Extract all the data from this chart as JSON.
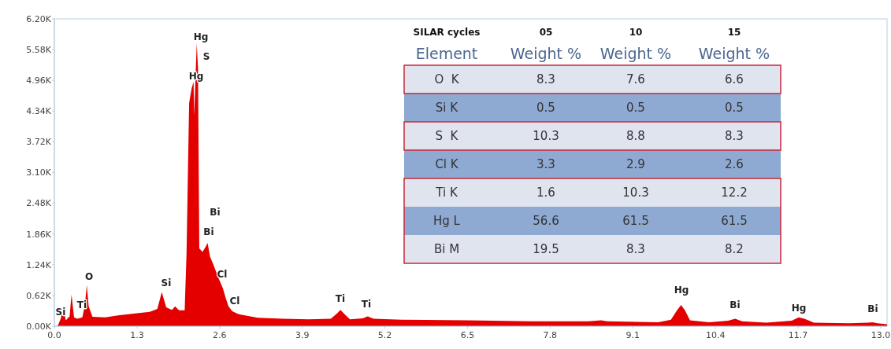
{
  "chart_data": [
    {
      "type": "area",
      "xlim": [
        0,
        13.1
      ],
      "ylim": [
        0,
        6200
      ],
      "xticks": [
        {
          "value": 0,
          "label": "0.0"
        },
        1.3,
        2.6,
        3.9,
        5.2,
        6.5,
        7.8,
        9.1,
        10.4,
        11.7,
        {
          "value": 13,
          "label": "13.0"
        }
      ],
      "yticks": [
        {
          "value": 0,
          "label": "0.00K"
        },
        {
          "value": 620,
          "label": "0.62K"
        },
        {
          "value": 1240,
          "label": "1.24K"
        },
        {
          "value": 1860,
          "label": "1.86K"
        },
        {
          "value": 2480,
          "label": "2.48K"
        },
        {
          "value": 3100,
          "label": "3.10K"
        },
        {
          "value": 3720,
          "label": "3.72K"
        },
        {
          "value": 4340,
          "label": "4.34K"
        },
        {
          "value": 4960,
          "label": "4.96K"
        },
        {
          "value": 5580,
          "label": "5.58K"
        },
        {
          "value": 6200,
          "label": "6.20K"
        }
      ],
      "grid": false,
      "x": [
        0.05,
        0.1,
        0.14,
        0.18,
        0.24,
        0.27,
        0.31,
        0.36,
        0.44,
        0.48,
        0.51,
        0.54,
        0.6,
        0.8,
        1.0,
        1.3,
        1.5,
        1.62,
        1.69,
        1.76,
        1.85,
        1.9,
        1.96,
        2.05,
        2.08,
        2.12,
        2.16,
        2.19,
        2.2,
        2.22,
        2.24,
        2.26,
        2.28,
        2.33,
        2.38,
        2.41,
        2.45,
        2.5,
        2.58,
        2.65,
        2.7,
        2.74,
        2.8,
        2.9,
        3.2,
        3.6,
        4.0,
        4.35,
        4.45,
        4.5,
        4.56,
        4.65,
        4.85,
        4.93,
        5.02,
        5.5,
        6.5,
        7.5,
        8.4,
        8.6,
        8.7,
        9.5,
        9.7,
        9.8,
        9.86,
        9.92,
        10.0,
        10.3,
        10.6,
        10.71,
        10.82,
        11.2,
        11.6,
        11.71,
        11.8,
        11.95,
        12.5,
        12.8,
        12.87,
        12.95,
        13.1
      ],
      "series": [
        {
          "color": "#e50000",
          "values": [
            0,
            150,
            370,
            120,
            200,
            640,
            180,
            150,
            180,
            420,
            830,
            400,
            190,
            180,
            220,
            260,
            290,
            350,
            690,
            380,
            330,
            400,
            320,
            320,
            1500,
            4500,
            4800,
            4930,
            4240,
            5000,
            5710,
            5200,
            1570,
            1500,
            1600,
            1680,
            1400,
            1250,
            980,
            770,
            550,
            400,
            300,
            240,
            170,
            150,
            140,
            150,
            260,
            330,
            250,
            140,
            160,
            200,
            150,
            130,
            120,
            100,
            100,
            120,
            100,
            80,
            130,
            330,
            430,
            320,
            120,
            80,
            110,
            150,
            100,
            70,
            110,
            180,
            150,
            70,
            60,
            70,
            80,
            60,
            40
          ]
        }
      ],
      "annotations": [
        "Hg",
        "S",
        "Hg",
        "Bi",
        "Bi",
        "Cl",
        "Cl",
        "O",
        "Si",
        "Si",
        "Ti",
        "Ti",
        "Ti",
        "Hg",
        "Bi",
        "Hg",
        "Bi"
      ]
    },
    {
      "type": "other",
      "legend_title": "SILAR cycles",
      "ylabel": "Element",
      "data_labels": true,
      "categories": [
        "O  K",
        "Si K",
        "S  K",
        "Cl K",
        "Ti K",
        "Hg L",
        "Bi M"
      ],
      "series": [
        {
          "name": "05",
          "values": [
            8.3,
            0.5,
            10.3,
            3.3,
            1.6,
            56.6,
            19.5
          ],
          "colors": [
            "#dfe4ef",
            "#8eaad2",
            "#dfe4ef",
            "#8eaad2",
            "#dfe4ef",
            "#8eaad2",
            "#dfe4ef"
          ]
        },
        {
          "name": "10",
          "values": [
            7.6,
            0.5,
            8.8,
            2.9,
            10.3,
            61.5,
            8.3
          ],
          "colors": [
            "#dfe4ef",
            "#8eaad2",
            "#dfe4ef",
            "#8eaad2",
            "#dfe4ef",
            "#8eaad2",
            "#dfe4ef"
          ]
        },
        {
          "name": "15",
          "values": [
            6.6,
            0.5,
            8.3,
            2.6,
            12.2,
            61.5,
            8.2
          ],
          "colors": [
            "#dfe4ef",
            "#8eaad2",
            "#dfe4ef",
            "#8eaad2",
            "#dfe4ef",
            "#8eaad2",
            "#dfe4ef"
          ]
        }
      ],
      "annotations": [
        "Weight %",
        "Weight %",
        "Weight %"
      ]
    }
  ]
}
